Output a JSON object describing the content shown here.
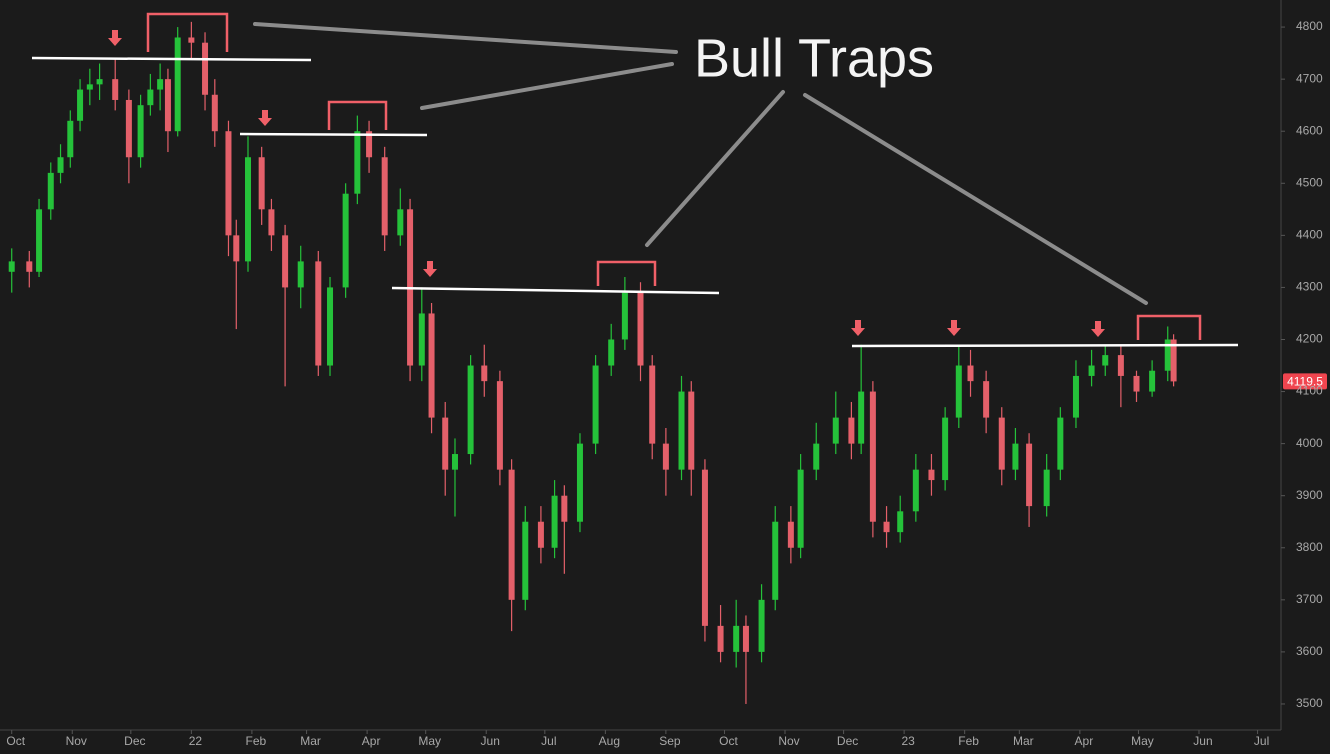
{
  "chart_data": {
    "type": "candlestick",
    "annotation": "Bull Traps",
    "price_tag": 4119.5,
    "colors": {
      "up": "#25c23a",
      "down": "#e4606a"
    },
    "xlim": [
      -6,
      650
    ],
    "ylim": [
      3450,
      4852
    ],
    "xticks": [
      {
        "value": 0,
        "label": "Oct"
      },
      {
        "value": 31,
        "label": "Nov"
      },
      {
        "value": 61,
        "label": "Dec"
      },
      {
        "value": 92,
        "label": "22"
      },
      {
        "value": 123,
        "label": "Feb"
      },
      {
        "value": 151,
        "label": "Mar"
      },
      {
        "value": 182,
        "label": "Apr"
      },
      {
        "value": 212,
        "label": "May"
      },
      {
        "value": 243,
        "label": "Jun"
      },
      {
        "value": 273,
        "label": "Jul"
      },
      {
        "value": 304,
        "label": "Aug"
      },
      {
        "value": 335,
        "label": "Sep"
      },
      {
        "value": 365,
        "label": "Oct"
      },
      {
        "value": 396,
        "label": "Nov"
      },
      {
        "value": 426,
        "label": "Dec"
      },
      {
        "value": 457,
        "label": "23"
      },
      {
        "value": 488,
        "label": "Feb"
      },
      {
        "value": 516,
        "label": "Mar"
      },
      {
        "value": 547,
        "label": "Apr"
      },
      {
        "value": 577,
        "label": "May"
      },
      {
        "value": 608,
        "label": "Jun"
      },
      {
        "value": 638,
        "label": "Jul"
      }
    ],
    "yticks": [
      3500,
      3600,
      3700,
      3800,
      3900,
      4000,
      4100,
      4200,
      4300,
      4400,
      4500,
      4600,
      4700,
      4800
    ],
    "x": [
      0,
      9,
      14,
      20,
      25,
      30,
      35,
      40,
      45,
      53,
      60,
      66,
      71,
      76,
      80,
      85,
      92,
      99,
      104,
      111,
      115,
      121,
      128,
      133,
      140,
      148,
      157,
      163,
      171,
      177,
      183,
      191,
      199,
      204,
      210,
      215,
      222,
      227,
      235,
      242,
      250,
      256,
      263,
      271,
      278,
      283,
      291,
      299,
      307,
      314,
      322,
      328,
      335,
      343,
      348,
      355,
      363,
      371,
      376,
      384,
      391,
      399,
      404,
      412,
      422,
      430,
      435,
      441,
      448,
      455,
      463,
      471,
      478,
      485,
      491,
      499,
      507,
      514,
      521,
      530,
      537,
      545,
      553,
      560,
      568,
      576,
      584,
      592,
      595
    ],
    "open": [
      4330,
      4350,
      4330,
      4450,
      4520,
      4550,
      4620,
      4680,
      4690,
      4700,
      4660,
      4550,
      4650,
      4680,
      4700,
      4600,
      4780,
      4770,
      4670,
      4600,
      4400,
      4350,
      4550,
      4450,
      4400,
      4300,
      4350,
      4150,
      4300,
      4480,
      4600,
      4550,
      4400,
      4450,
      4150,
      4250,
      4050,
      3950,
      3980,
      4150,
      4120,
      3950,
      3700,
      3850,
      3800,
      3900,
      3850,
      4000,
      4150,
      4200,
      4290,
      4150,
      4000,
      3950,
      4100,
      3950,
      3650,
      3600,
      3650,
      3600,
      3700,
      3850,
      3800,
      3950,
      4000,
      4050,
      4000,
      4100,
      3850,
      3830,
      3870,
      3950,
      3930,
      4050,
      4150,
      4120,
      4050,
      3950,
      4000,
      3880,
      3950,
      4050,
      4130,
      4150,
      4170,
      4130,
      4100,
      4140,
      4200
    ],
    "high": [
      4375,
      4370,
      4470,
      4540,
      4575,
      4640,
      4700,
      4720,
      4730,
      4740,
      4680,
      4670,
      4710,
      4730,
      4720,
      4800,
      4810,
      4790,
      4700,
      4620,
      4430,
      4590,
      4570,
      4470,
      4420,
      4380,
      4370,
      4320,
      4500,
      4630,
      4620,
      4570,
      4490,
      4470,
      4300,
      4270,
      4080,
      4010,
      4170,
      4190,
      4140,
      3970,
      3880,
      3880,
      3930,
      3920,
      4020,
      4170,
      4230,
      4320,
      4310,
      4170,
      4030,
      4130,
      4120,
      3970,
      3690,
      3700,
      3670,
      3730,
      3880,
      3880,
      3980,
      4040,
      4100,
      4080,
      4190,
      4120,
      3880,
      3900,
      3980,
      3980,
      4070,
      4190,
      4180,
      4140,
      4070,
      4030,
      4020,
      3980,
      4070,
      4160,
      4180,
      4190,
      4190,
      4140,
      4160,
      4225,
      4210
    ],
    "low": [
      4290,
      4300,
      4320,
      4430,
      4500,
      4530,
      4600,
      4650,
      4660,
      4640,
      4500,
      4530,
      4630,
      4640,
      4560,
      4590,
      4740,
      4640,
      4570,
      4360,
      4220,
      4330,
      4420,
      4370,
      4110,
      4260,
      4130,
      4130,
      4280,
      4460,
      4520,
      4370,
      4380,
      4120,
      4120,
      4020,
      3900,
      3860,
      3960,
      4090,
      3920,
      3640,
      3680,
      3770,
      3780,
      3750,
      3830,
      3980,
      4130,
      4180,
      4120,
      3970,
      3900,
      3930,
      3900,
      3620,
      3580,
      3570,
      3500,
      3580,
      3680,
      3770,
      3780,
      3930,
      3980,
      3970,
      3980,
      3820,
      3800,
      3810,
      3850,
      3900,
      3910,
      4030,
      4090,
      4020,
      3920,
      3930,
      3840,
      3860,
      3930,
      4030,
      4110,
      4130,
      4070,
      4080,
      4090,
      4120,
      4110
    ],
    "close": [
      4350,
      4330,
      4450,
      4520,
      4550,
      4620,
      4680,
      4690,
      4700,
      4660,
      4550,
      4650,
      4680,
      4700,
      4600,
      4780,
      4770,
      4670,
      4600,
      4400,
      4350,
      4550,
      4450,
      4400,
      4300,
      4350,
      4150,
      4300,
      4480,
      4600,
      4550,
      4400,
      4450,
      4150,
      4250,
      4050,
      3950,
      3980,
      4150,
      4120,
      3950,
      3700,
      3850,
      3800,
      3900,
      3850,
      4000,
      4150,
      4200,
      4290,
      4150,
      4000,
      3950,
      4100,
      3950,
      3650,
      3600,
      3650,
      3600,
      3700,
      3850,
      3800,
      3950,
      4000,
      4050,
      4000,
      4100,
      3850,
      3830,
      3870,
      3950,
      3930,
      4050,
      4150,
      4120,
      4050,
      3950,
      4000,
      3880,
      3950,
      4050,
      4130,
      4150,
      4170,
      4130,
      4100,
      4140,
      4200,
      4119.5
    ]
  }
}
